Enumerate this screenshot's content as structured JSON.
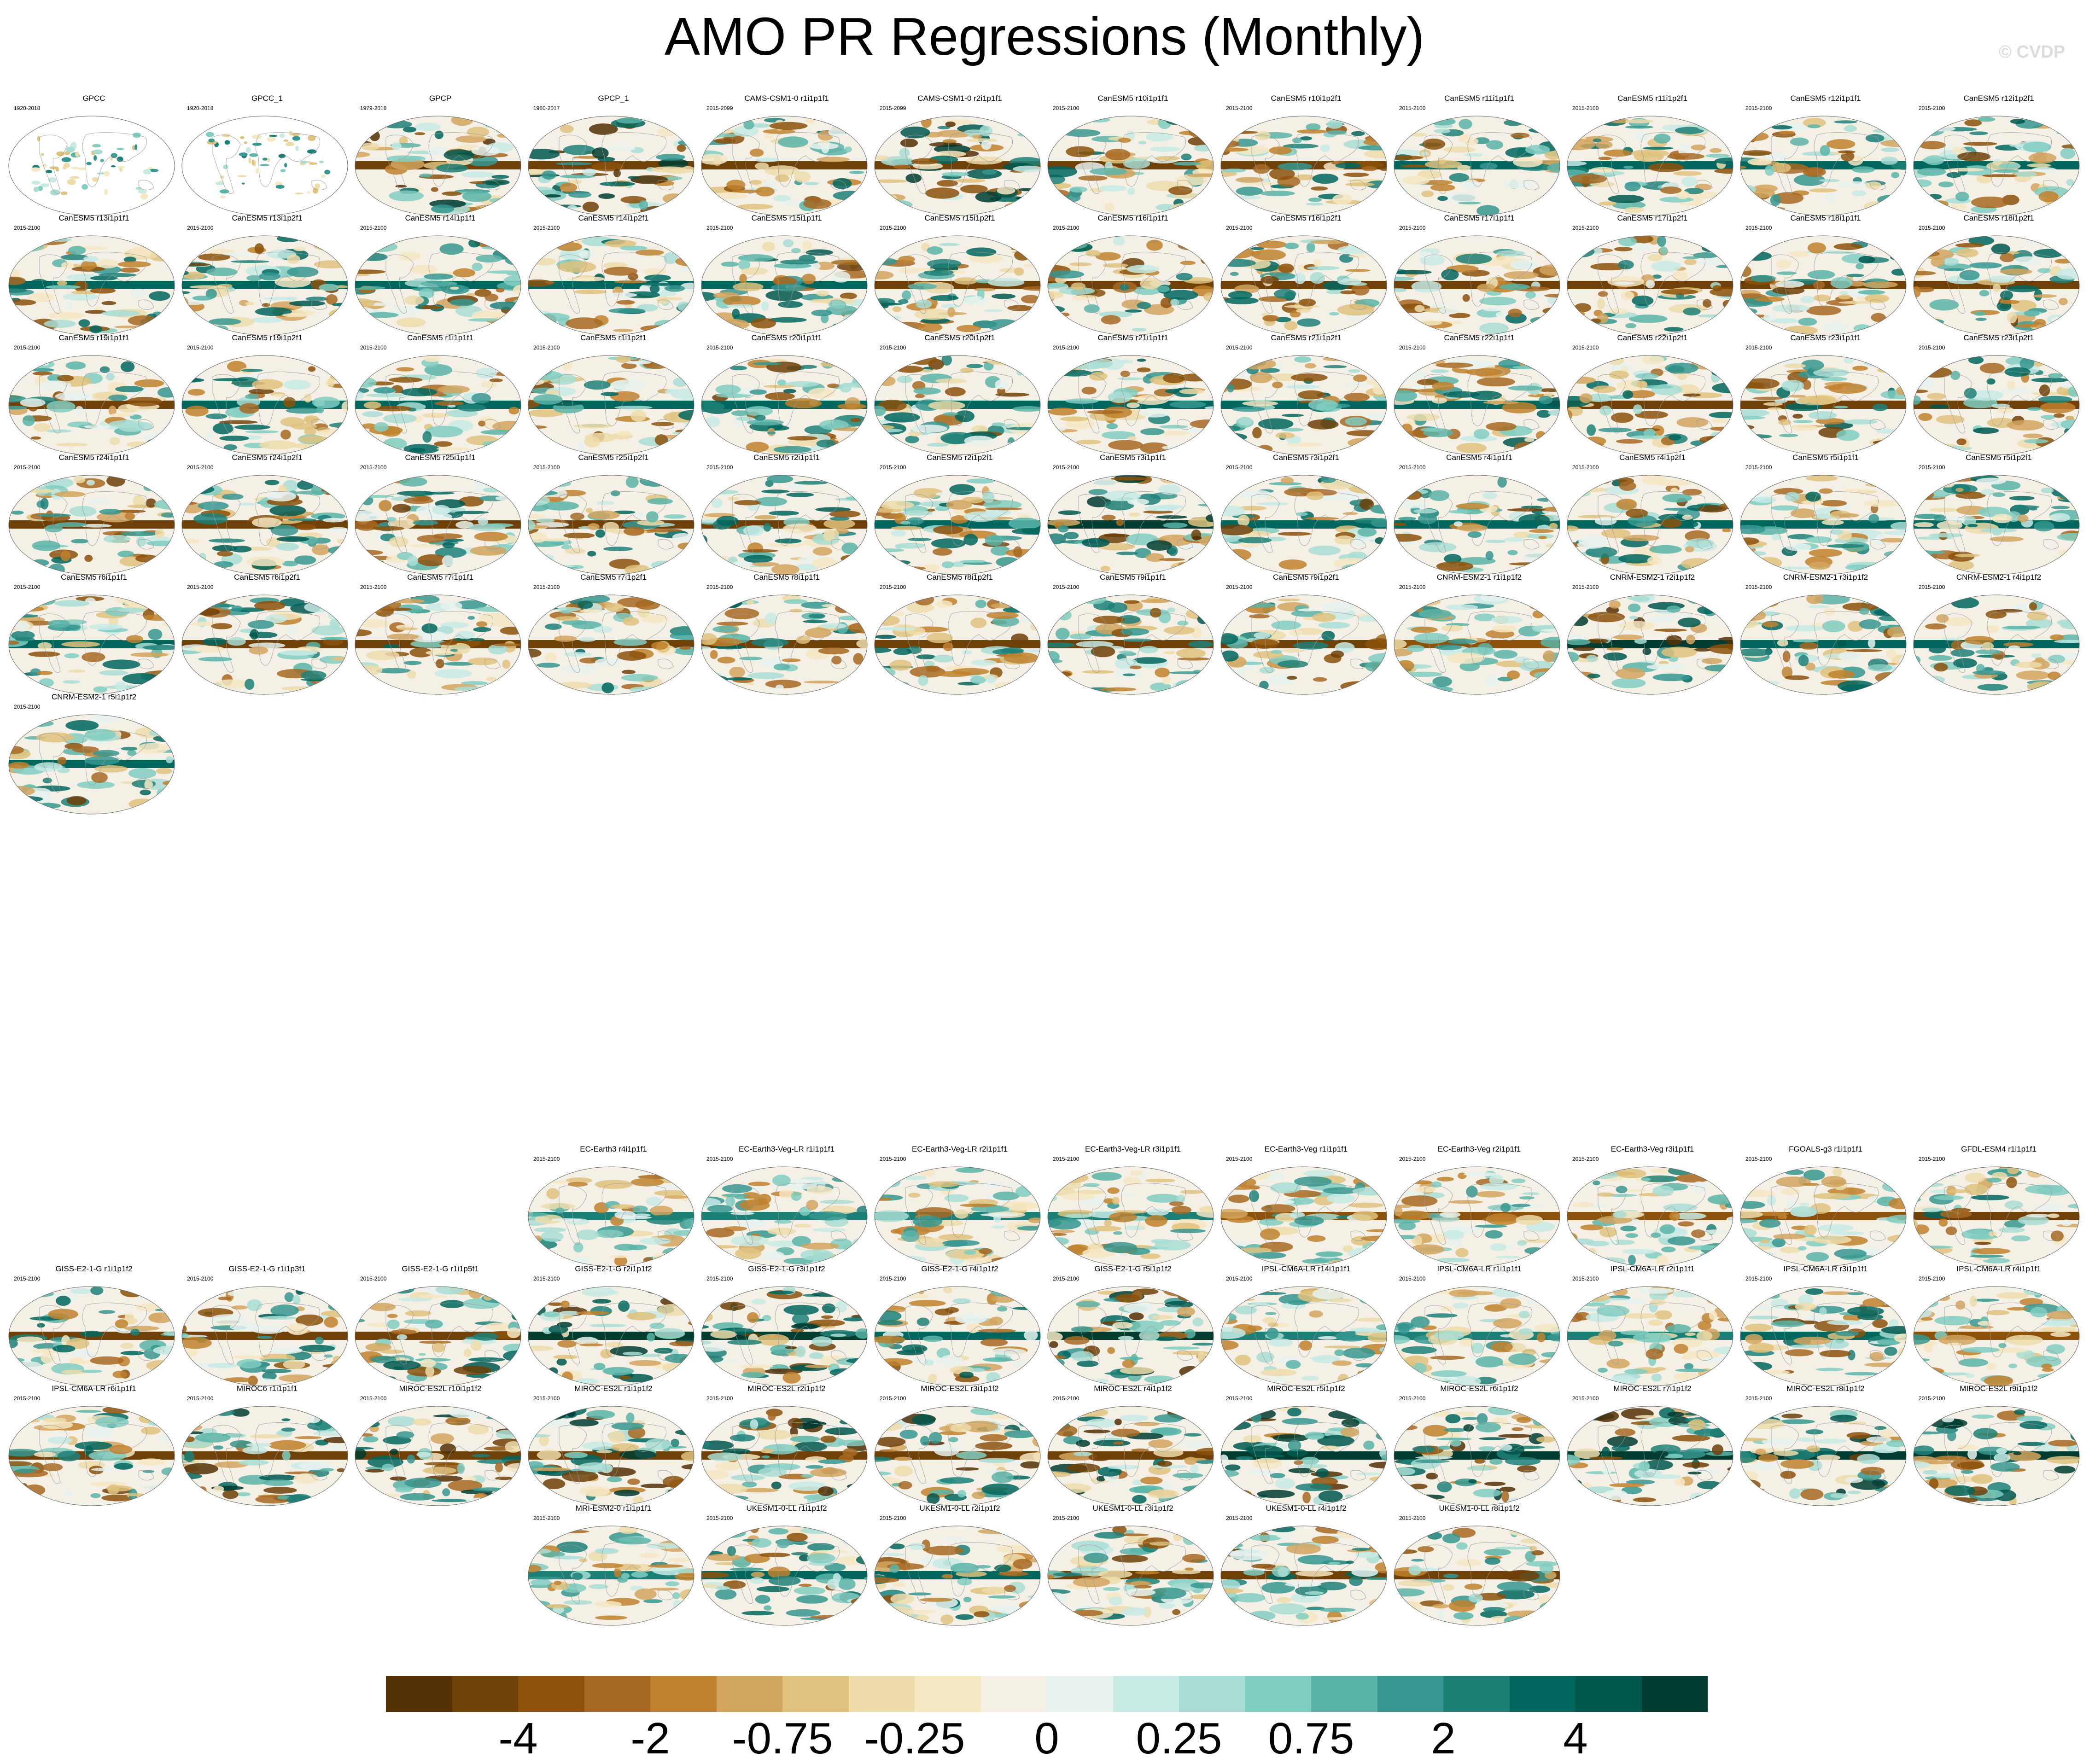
{
  "title": "AMO PR Regressions (Monthly)",
  "watermark": "© CVDP",
  "colorbar": {
    "colors": [
      "#543005",
      "#6f4008",
      "#8c510a",
      "#a76822",
      "#bf812d",
      "#d2a55e",
      "#dfc27d",
      "#eddcaa",
      "#f6e8c3",
      "#f5f0e6",
      "#e7f2ef",
      "#c7eae5",
      "#a9ddd4",
      "#80cdc1",
      "#5ab4a8",
      "#35978f",
      "#1d8077",
      "#01665e",
      "#00574e",
      "#003c30"
    ],
    "tick_labels": [
      "-4",
      "-2",
      "-0.75",
      "-0.25",
      "0",
      "0.25",
      "0.75",
      "2",
      "4"
    ]
  },
  "panels": [
    {
      "title": "GPCC",
      "years": "1920-2018",
      "kind": "land"
    },
    {
      "title": "GPCC_1",
      "years": "1920-2018",
      "kind": "land"
    },
    {
      "title": "GPCP",
      "years": "1979-2018",
      "kind": "strong"
    },
    {
      "title": "GPCP_1",
      "years": "1980-2017",
      "kind": "strong"
    },
    {
      "title": "CAMS-CSM1-0 r1i1p1f1",
      "years": "2015-2099",
      "kind": "mix"
    },
    {
      "title": "CAMS-CSM1-0 r2i1p1f1",
      "years": "2015-2099",
      "kind": "strong"
    },
    {
      "title": "CanESM5 r10i1p1f1",
      "years": "2015-2100",
      "kind": "mix"
    },
    {
      "title": "CanESM5 r10i1p2f1",
      "years": "2015-2100",
      "kind": "mix"
    },
    {
      "title": "CanESM5 r11i1p1f1",
      "years": "2015-2100",
      "kind": "mix"
    },
    {
      "title": "CanESM5 r11i1p2f1",
      "years": "2015-2100",
      "kind": "mix"
    },
    {
      "title": "CanESM5 r12i1p1f1",
      "years": "2015-2100",
      "kind": "mix"
    },
    {
      "title": "CanESM5 r12i1p2f1",
      "years": "2015-2100",
      "kind": "mix"
    },
    {
      "title": "CanESM5 r13i1p1f1",
      "years": "2015-2100",
      "kind": "mix"
    },
    {
      "title": "CanESM5 r13i1p2f1",
      "years": "2015-2100",
      "kind": "mix"
    },
    {
      "title": "CanESM5 r14i1p1f1",
      "years": "2015-2100",
      "kind": "mix"
    },
    {
      "title": "CanESM5 r14i1p2f1",
      "years": "2015-2100",
      "kind": "mix"
    },
    {
      "title": "CanESM5 r15i1p1f1",
      "years": "2015-2100",
      "kind": "mix"
    },
    {
      "title": "CanESM5 r15i1p2f1",
      "years": "2015-2100",
      "kind": "mix"
    },
    {
      "title": "CanESM5 r16i1p1f1",
      "years": "2015-2100",
      "kind": "mix"
    },
    {
      "title": "CanESM5 r16i1p2f1",
      "years": "2015-2100",
      "kind": "mix"
    },
    {
      "title": "CanESM5 r17i1p1f1",
      "years": "2015-2100",
      "kind": "mix"
    },
    {
      "title": "CanESM5 r17i1p2f1",
      "years": "2015-2100",
      "kind": "mix"
    },
    {
      "title": "CanESM5 r18i1p1f1",
      "years": "2015-2100",
      "kind": "mix"
    },
    {
      "title": "CanESM5 r18i1p2f1",
      "years": "2015-2100",
      "kind": "mix"
    },
    {
      "title": "CanESM5 r19i1p1f1",
      "years": "2015-2100",
      "kind": "mix"
    },
    {
      "title": "CanESM5 r19i1p2f1",
      "years": "2015-2100",
      "kind": "mix"
    },
    {
      "title": "CanESM5 r1i1p1f1",
      "years": "2015-2100",
      "kind": "mix"
    },
    {
      "title": "CanESM5 r1i1p2f1",
      "years": "2015-2100",
      "kind": "mix"
    },
    {
      "title": "CanESM5 r20i1p1f1",
      "years": "2015-2100",
      "kind": "mix"
    },
    {
      "title": "CanESM5 r20i1p2f1",
      "years": "2015-2100",
      "kind": "mix"
    },
    {
      "title": "CanESM5 r21i1p1f1",
      "years": "2015-2100",
      "kind": "mix"
    },
    {
      "title": "CanESM5 r21i1p2f1",
      "years": "2015-2100",
      "kind": "mix"
    },
    {
      "title": "CanESM5 r22i1p1f1",
      "years": "2015-2100",
      "kind": "mix"
    },
    {
      "title": "CanESM5 r22i1p2f1",
      "years": "2015-2100",
      "kind": "mix"
    },
    {
      "title": "CanESM5 r23i1p1f1",
      "years": "2015-2100",
      "kind": "mix"
    },
    {
      "title": "CanESM5 r23i1p2f1",
      "years": "2015-2100",
      "kind": "mix"
    },
    {
      "title": "CanESM5 r24i1p1f1",
      "years": "2015-2100",
      "kind": "mix"
    },
    {
      "title": "CanESM5 r24i1p2f1",
      "years": "2015-2100",
      "kind": "mix"
    },
    {
      "title": "CanESM5 r25i1p1f1",
      "years": "2015-2100",
      "kind": "mix"
    },
    {
      "title": "CanESM5 r25i1p2f1",
      "years": "2015-2100",
      "kind": "mix"
    },
    {
      "title": "CanESM5 r2i1p1f1",
      "years": "2015-2100",
      "kind": "mix"
    },
    {
      "title": "CanESM5 r2i1p2f1",
      "years": "2015-2100",
      "kind": "mix"
    },
    {
      "title": "CanESM5 r3i1p1f1",
      "years": "2015-2100",
      "kind": "strong"
    },
    {
      "title": "CanESM5 r3i1p2f1",
      "years": "2015-2100",
      "kind": "mix"
    },
    {
      "title": "CanESM5 r4i1p1f1",
      "years": "2015-2100",
      "kind": "mix"
    },
    {
      "title": "CanESM5 r4i1p2f1",
      "years": "2015-2100",
      "kind": "mix"
    },
    {
      "title": "CanESM5 r5i1p1f1",
      "years": "2015-2100",
      "kind": "mix"
    },
    {
      "title": "CanESM5 r5i1p2f1",
      "years": "2015-2100",
      "kind": "mix"
    },
    {
      "title": "CanESM5 r6i1p1f1",
      "years": "2015-2100",
      "kind": "mix"
    },
    {
      "title": "CanESM5 r6i1p2f1",
      "years": "2015-2100",
      "kind": "mix"
    },
    {
      "title": "CanESM5 r7i1p1f1",
      "years": "2015-2100",
      "kind": "mix"
    },
    {
      "title": "CanESM5 r7i1p2f1",
      "years": "2015-2100",
      "kind": "mix"
    },
    {
      "title": "CanESM5 r8i1p1f1",
      "years": "2015-2100",
      "kind": "mix"
    },
    {
      "title": "CanESM5 r8i1p2f1",
      "years": "2015-2100",
      "kind": "mix"
    },
    {
      "title": "CanESM5 r9i1p1f1",
      "years": "2015-2100",
      "kind": "mix"
    },
    {
      "title": "CanESM5 r9i1p2f1",
      "years": "2015-2100",
      "kind": "mix"
    },
    {
      "title": "CNRM-ESM2-1 r1i1p1f2",
      "years": "2015-2100",
      "kind": "weak"
    },
    {
      "title": "CNRM-ESM2-1 r2i1p1f2",
      "years": "2015-2100",
      "kind": "strong"
    },
    {
      "title": "CNRM-ESM2-1 r3i1p1f2",
      "years": "2015-2100",
      "kind": "mix"
    },
    {
      "title": "CNRM-ESM2-1 r4i1p1f2",
      "years": "2015-2100",
      "kind": "mix"
    },
    {
      "title": "CNRM-ESM2-1 r5i1p1f2",
      "years": "2015-2100",
      "kind": "mix"
    },
    {
      "title": "EC-Earth3 r4i1p1f1",
      "years": "2015-2100",
      "kind": "weak"
    },
    {
      "title": "EC-Earth3-Veg-LR r1i1p1f1",
      "years": "2015-2100",
      "kind": "weak"
    },
    {
      "title": "EC-Earth3-Veg-LR r2i1p1f1",
      "years": "2015-2100",
      "kind": "weak"
    },
    {
      "title": "EC-Earth3-Veg-LR r3i1p1f1",
      "years": "2015-2100",
      "kind": "weak"
    },
    {
      "title": "EC-Earth3-Veg r1i1p1f1",
      "years": "2015-2100",
      "kind": "weak"
    },
    {
      "title": "EC-Earth3-Veg r2i1p1f1",
      "years": "2015-2100",
      "kind": "weak"
    },
    {
      "title": "EC-Earth3-Veg r3i1p1f1",
      "years": "2015-2100",
      "kind": "weak"
    },
    {
      "title": "FGOALS-g3 r1i1p1f1",
      "years": "2015-2100",
      "kind": "weak"
    },
    {
      "title": "GFDL-ESM4 r1i1p1f1",
      "years": "2015-2100",
      "kind": "mix"
    },
    {
      "title": "GISS-E2-1-G r1i1p1f2",
      "years": "2015-2100",
      "kind": "mix"
    },
    {
      "title": "GISS-E2-1-G r1i1p3f1",
      "years": "2015-2100",
      "kind": "mix"
    },
    {
      "title": "GISS-E2-1-G r1i1p5f1",
      "years": "2015-2100",
      "kind": "mix"
    },
    {
      "title": "GISS-E2-1-G r2i1p1f2",
      "years": "2015-2100",
      "kind": "strong"
    },
    {
      "title": "GISS-E2-1-G r3i1p1f2",
      "years": "2015-2100",
      "kind": "strong"
    },
    {
      "title": "GISS-E2-1-G r4i1p1f2",
      "years": "2015-2100",
      "kind": "mix"
    },
    {
      "title": "GISS-E2-1-G r5i1p1f2",
      "years": "2015-2100",
      "kind": "strong"
    },
    {
      "title": "IPSL-CM6A-LR r14i1p1f1",
      "years": "2015-2100",
      "kind": "weak"
    },
    {
      "title": "IPSL-CM6A-LR r1i1p1f1",
      "years": "2015-2100",
      "kind": "weak"
    },
    {
      "title": "IPSL-CM6A-LR r2i1p1f1",
      "years": "2015-2100",
      "kind": "weak"
    },
    {
      "title": "IPSL-CM6A-LR r3i1p1f1",
      "years": "2015-2100",
      "kind": "mix"
    },
    {
      "title": "IPSL-CM6A-LR r4i1p1f1",
      "years": "2015-2100",
      "kind": "weak"
    },
    {
      "title": "IPSL-CM6A-LR r6i1p1f1",
      "years": "2015-2100",
      "kind": "mix"
    },
    {
      "title": "MIROC6 r1i1p1f1",
      "years": "2015-2100",
      "kind": "strong"
    },
    {
      "title": "MIROC-ES2L r10i1p1f2",
      "years": "2015-2100",
      "kind": "strong"
    },
    {
      "title": "MIROC-ES2L r1i1p1f2",
      "years": "2015-2100",
      "kind": "strong"
    },
    {
      "title": "MIROC-ES2L r2i1p1f2",
      "years": "2015-2100",
      "kind": "strong"
    },
    {
      "title": "MIROC-ES2L r3i1p1f2",
      "years": "2015-2100",
      "kind": "strong"
    },
    {
      "title": "MIROC-ES2L r4i1p1f2",
      "years": "2015-2100",
      "kind": "strong"
    },
    {
      "title": "MIROC-ES2L r5i1p1f2",
      "years": "2015-2100",
      "kind": "strong"
    },
    {
      "title": "MIROC-ES2L r6i1p1f2",
      "years": "2015-2100",
      "kind": "strong"
    },
    {
      "title": "MIROC-ES2L r7i1p1f2",
      "years": "2015-2100",
      "kind": "strong"
    },
    {
      "title": "MIROC-ES2L r8i1p1f2",
      "years": "2015-2100",
      "kind": "strong"
    },
    {
      "title": "MIROC-ES2L r9i1p1f2",
      "years": "2015-2100",
      "kind": "strong"
    },
    {
      "title": "MRI-ESM2-0 r1i1p1f1",
      "years": "2015-2100",
      "kind": "weak"
    },
    {
      "title": "UKESM1-0-LL r1i1p1f2",
      "years": "2015-2100",
      "kind": "mix"
    },
    {
      "title": "UKESM1-0-LL r2i1p1f2",
      "years": "2015-2100",
      "kind": "mix"
    },
    {
      "title": "UKESM1-0-LL r3i1p1f2",
      "years": "2015-2100",
      "kind": "mix"
    },
    {
      "title": "UKESM1-0-LL r4i1p1f2",
      "years": "2015-2100",
      "kind": "mix"
    },
    {
      "title": "UKESM1-0-LL r8i1p1f2",
      "years": "2015-2100",
      "kind": "mix"
    }
  ]
}
